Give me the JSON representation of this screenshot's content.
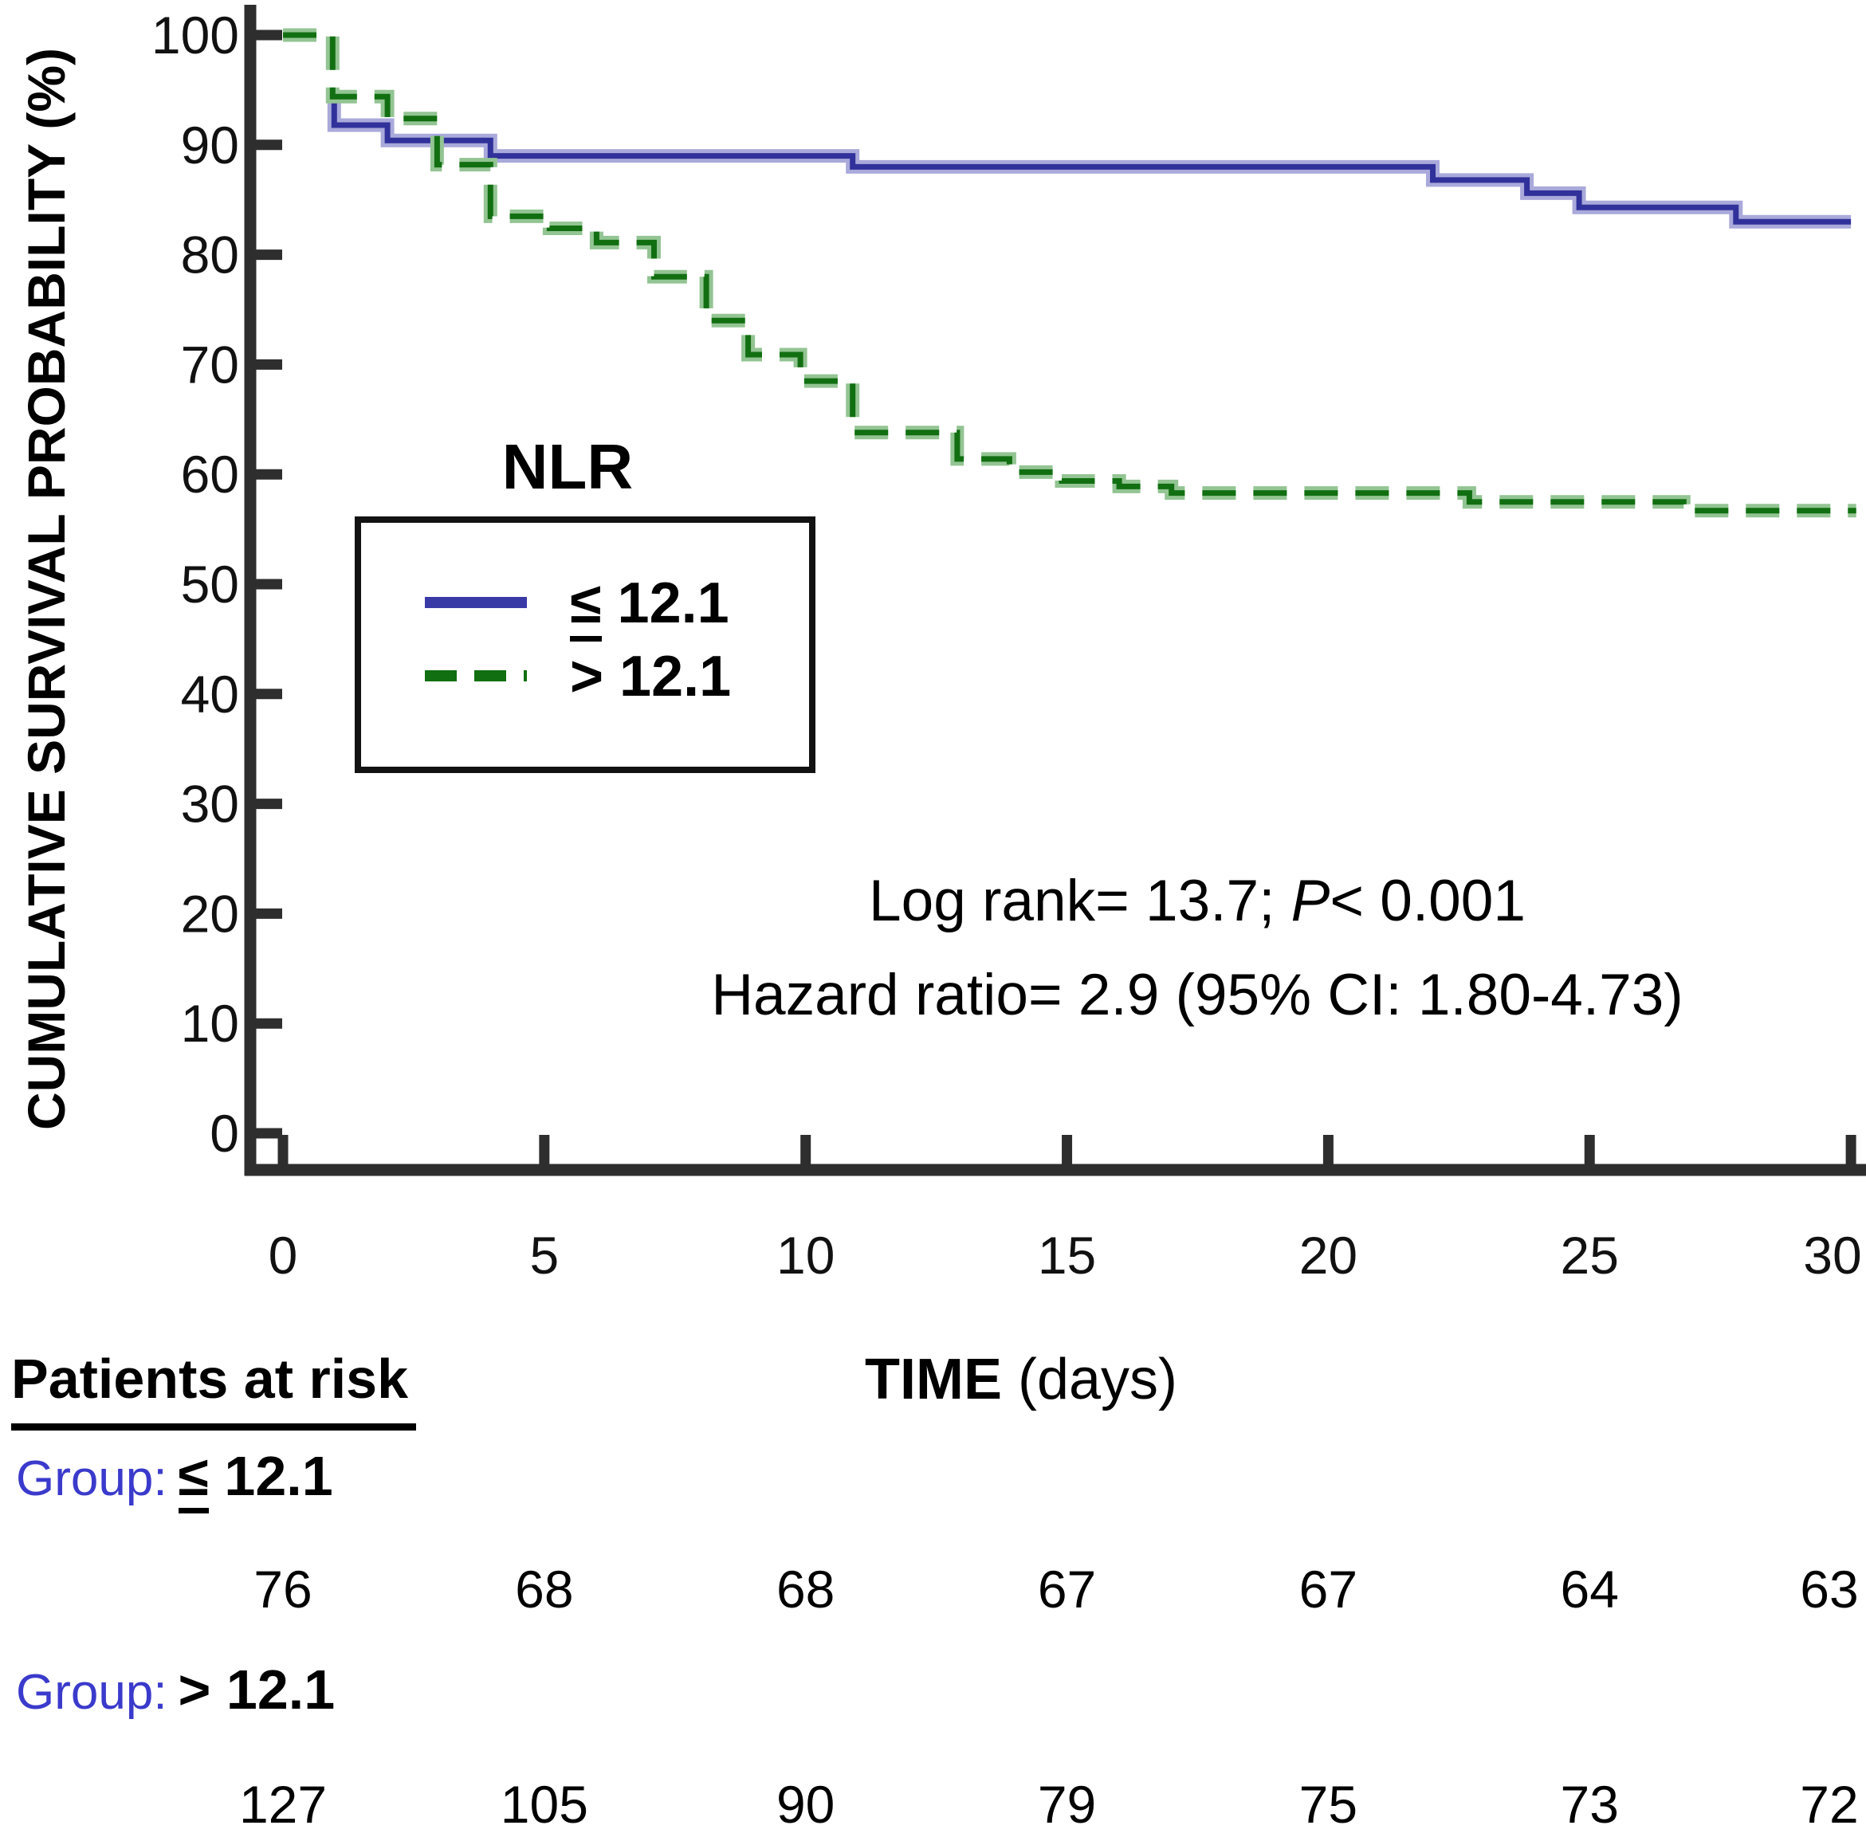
{
  "y_axis": {
    "title": "CUMULATIVE SURVIVAL PROBABILITY (%)",
    "ticks": [
      0,
      10,
      20,
      30,
      40,
      50,
      60,
      70,
      80,
      90,
      100
    ]
  },
  "x_axis": {
    "title_bold": "TIME",
    "title_rest": " (days)",
    "ticks": [
      0,
      5,
      10,
      15,
      20,
      25,
      30
    ]
  },
  "legend": {
    "title": "NLR",
    "items": [
      {
        "symbol": "≤",
        "value": " 12.1",
        "line_style": "solid",
        "color": "#3a3aa6"
      },
      {
        "symbol": ">",
        "value": " 12.1",
        "line_style": "dashed",
        "color": "#116f11"
      }
    ]
  },
  "annotations": {
    "line1_pre": "Log rank= 13.7; ",
    "line1_italic": "P",
    "line1_post": "< 0.001",
    "line2": "Hazard ratio= 2.9 (95% CI: 1.80-4.73)"
  },
  "risk_table": {
    "heading": "Patients at risk",
    "days": [
      0,
      5,
      10,
      15,
      20,
      25,
      30
    ],
    "groups": [
      {
        "prefix": "Group:",
        "symbol": "≤",
        "value": " 12.1",
        "counts": [
          76,
          68,
          68,
          67,
          67,
          64,
          63
        ]
      },
      {
        "prefix": "Group:",
        "symbol": ">",
        "value": " 12.1",
        "counts": [
          127,
          105,
          90,
          79,
          75,
          73,
          72
        ]
      }
    ]
  },
  "colors": {
    "axis": "#2e2e2e",
    "blue_core": "#31319b",
    "blue_halo": "#a9a9db",
    "green_core": "#116f11",
    "green_halo": "#93c493",
    "group_label": "#3a3acc"
  },
  "chart_data": {
    "type": "line",
    "step": true,
    "title": "",
    "xlabel": "TIME (days)",
    "ylabel": "CUMULATIVE SURVIVAL PROBABILITY (%)",
    "xlim": [
      0,
      30
    ],
    "ylim": [
      0,
      100
    ],
    "grid": false,
    "legend_position": "upper-left-inside",
    "series": [
      {
        "name": "NLR ≤ 12.1",
        "style": "solid",
        "core_color": "#31319b",
        "halo_color": "#a9a9db",
        "points": [
          [
            0.98,
            94.3
          ],
          [
            0.98,
            91.8
          ],
          [
            2.0,
            91.8
          ],
          [
            2.0,
            90.4
          ],
          [
            3.97,
            90.4
          ],
          [
            3.97,
            89.0
          ],
          [
            10.9,
            89.0
          ],
          [
            10.9,
            88.0
          ],
          [
            22.0,
            88.0
          ],
          [
            22.0,
            86.8
          ],
          [
            23.8,
            86.8
          ],
          [
            23.8,
            85.6
          ],
          [
            24.8,
            85.6
          ],
          [
            24.8,
            84.3
          ],
          [
            27.8,
            84.3
          ],
          [
            27.8,
            83.0
          ],
          [
            30.0,
            83.0
          ]
        ]
      },
      {
        "name": "NLR > 12.1",
        "style": "dashed",
        "core_color": "#116f11",
        "halo_color": "#93c493",
        "points": [
          [
            0.0,
            100.0
          ],
          [
            0.95,
            100.0
          ],
          [
            0.95,
            94.4
          ],
          [
            2.0,
            94.4
          ],
          [
            2.0,
            92.4
          ],
          [
            2.95,
            92.4
          ],
          [
            2.95,
            88.2
          ],
          [
            3.97,
            88.2
          ],
          [
            3.97,
            83.5
          ],
          [
            5.1,
            83.5
          ],
          [
            5.1,
            82.4
          ],
          [
            6.0,
            82.4
          ],
          [
            6.0,
            81.1
          ],
          [
            7.1,
            81.1
          ],
          [
            7.1,
            78.0
          ],
          [
            8.1,
            78.0
          ],
          [
            8.1,
            74.0
          ],
          [
            8.9,
            74.0
          ],
          [
            8.9,
            70.9
          ],
          [
            9.9,
            70.9
          ],
          [
            9.9,
            68.5
          ],
          [
            10.9,
            68.5
          ],
          [
            10.9,
            63.8
          ],
          [
            12.9,
            63.8
          ],
          [
            12.9,
            61.4
          ],
          [
            13.9,
            61.4
          ],
          [
            13.9,
            60.2
          ],
          [
            14.9,
            60.2
          ],
          [
            14.9,
            59.4
          ],
          [
            16.0,
            59.4
          ],
          [
            16.0,
            58.9
          ],
          [
            17.0,
            58.9
          ],
          [
            17.0,
            58.3
          ],
          [
            22.7,
            58.3
          ],
          [
            22.7,
            57.5
          ],
          [
            26.8,
            57.5
          ],
          [
            26.8,
            56.7
          ],
          [
            30.1,
            56.7
          ]
        ]
      }
    ],
    "at_risk": {
      "days": [
        0,
        5,
        10,
        15,
        20,
        25,
        30
      ],
      "NLR <= 12.1": [
        76,
        68,
        68,
        67,
        67,
        64,
        63
      ],
      "NLR > 12.1": [
        127,
        105,
        90,
        79,
        75,
        73,
        72
      ]
    },
    "stats": {
      "log_rank": 13.7,
      "p": "< 0.001",
      "hazard_ratio": 2.9,
      "ci_95": "1.80-4.73"
    }
  }
}
